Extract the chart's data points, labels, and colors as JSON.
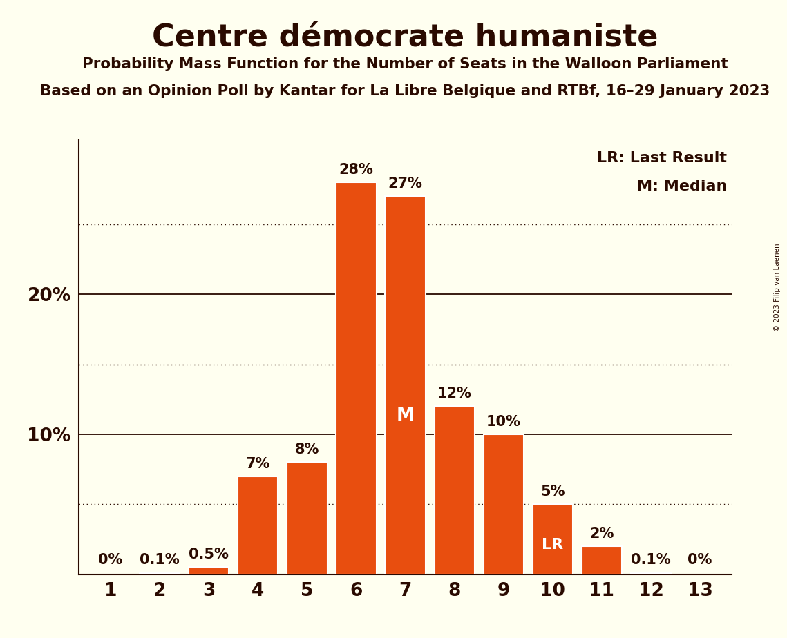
{
  "title": "Centre démocrate humaniste",
  "subtitle1": "Probability Mass Function for the Number of Seats in the Walloon Parliament",
  "subtitle2": "Based on an Opinion Poll by Kantar for La Libre Belgique and RTBf, 16–29 January 2023",
  "copyright": "© 2023 Filip van Laenen",
  "categories": [
    1,
    2,
    3,
    4,
    5,
    6,
    7,
    8,
    9,
    10,
    11,
    12,
    13
  ],
  "values": [
    0.0,
    0.1,
    0.5,
    7.0,
    8.0,
    28.0,
    27.0,
    12.0,
    10.0,
    5.0,
    2.0,
    0.1,
    0.0
  ],
  "labels": [
    "0%",
    "0.1%",
    "0.5%",
    "7%",
    "8%",
    "28%",
    "27%",
    "12%",
    "10%",
    "5%",
    "2%",
    "0.1%",
    "0%"
  ],
  "bar_color": "#E84E0F",
  "background_color": "#FFFFF0",
  "text_color": "#2a0a00",
  "dotted_lines": [
    5,
    15,
    25
  ],
  "solid_lines": [
    10,
    20
  ],
  "lr_seat": 10,
  "median_seat": 7,
  "lr_label": "LR",
  "median_label": "M",
  "legend_lr": "LR: Last Result",
  "legend_m": "M: Median",
  "ymax": 31
}
